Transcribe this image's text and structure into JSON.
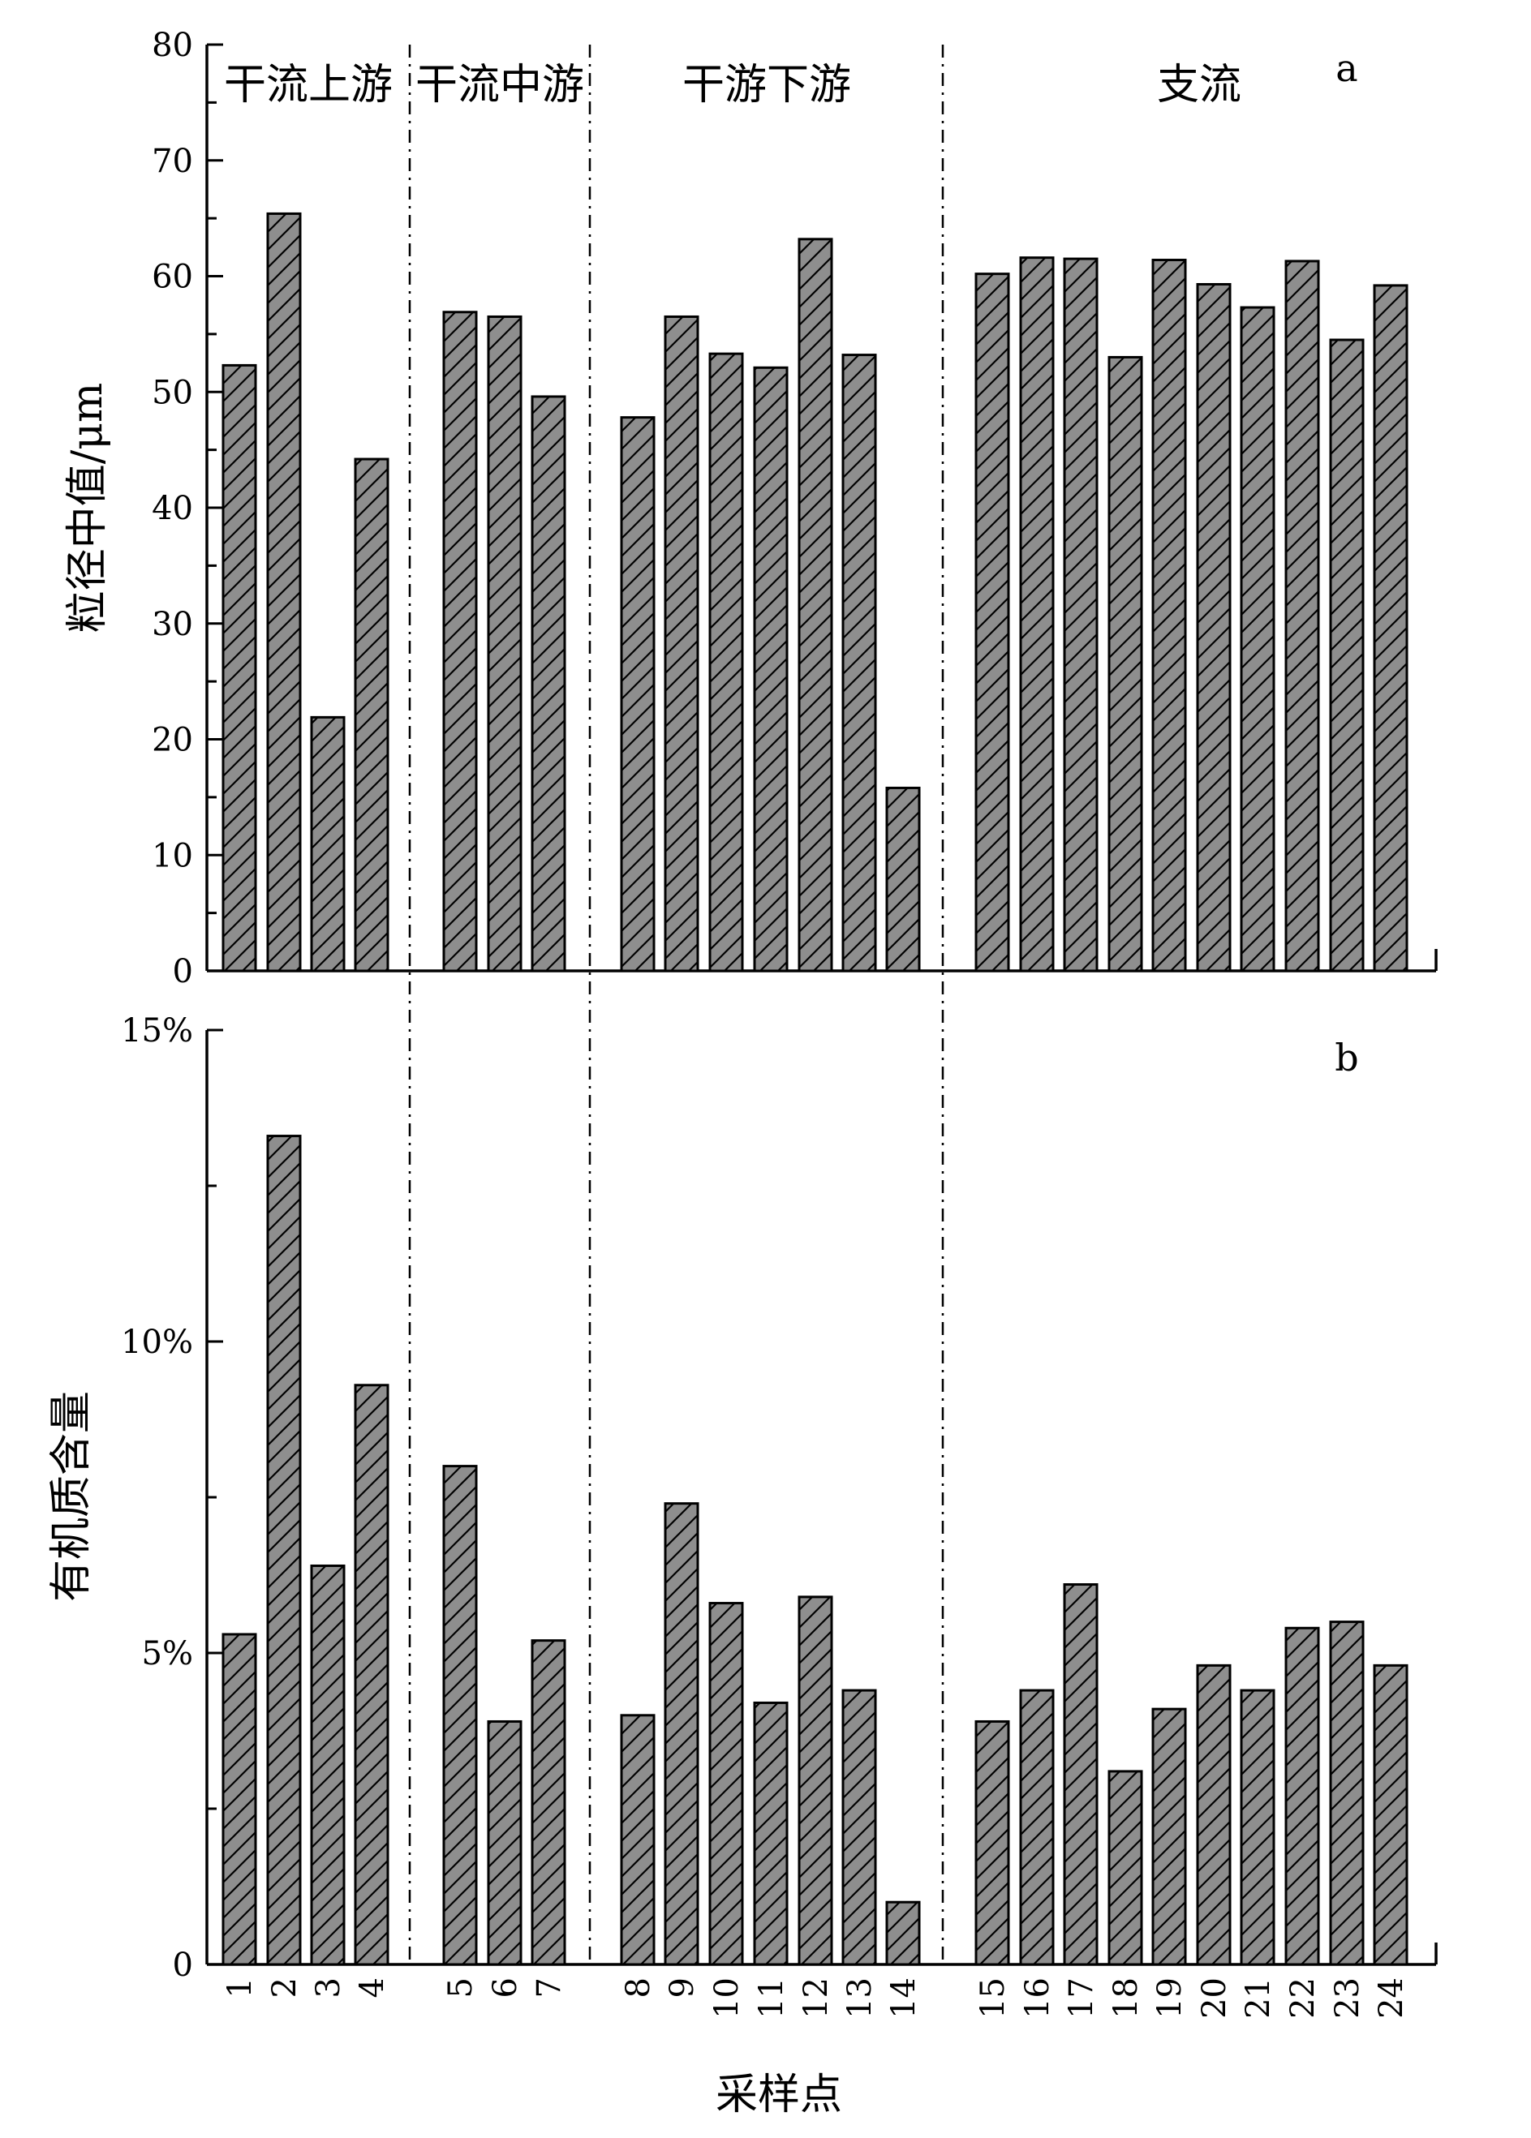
{
  "chart_data": [
    {
      "type": "bar",
      "panel": "a",
      "title": "",
      "xlabel": "",
      "ylabel": "粒径中值/μm",
      "ylim": [
        0,
        80
      ],
      "yticks": [
        "0",
        "10",
        "20",
        "30",
        "40",
        "50",
        "60",
        "70",
        "80"
      ],
      "grid": false,
      "categories": [
        "1",
        "2",
        "3",
        "4",
        "5",
        "6",
        "7",
        "8",
        "9",
        "10",
        "11",
        "12",
        "13",
        "14",
        "15",
        "16",
        "17",
        "18",
        "19",
        "20",
        "21",
        "22",
        "23",
        "24"
      ],
      "values": [
        52.3,
        65.4,
        21.9,
        44.2,
        56.9,
        56.5,
        49.6,
        47.8,
        56.5,
        53.3,
        52.1,
        63.2,
        53.2,
        15.8,
        60.2,
        61.6,
        61.5,
        53.0,
        61.4,
        59.3,
        57.3,
        61.3,
        54.5,
        59.2
      ],
      "regions": [
        "干流上游",
        "干流中游",
        "干游下游",
        "支流"
      ]
    },
    {
      "type": "bar",
      "panel": "b",
      "title": "",
      "xlabel": "采样点",
      "ylabel": "有机质含量",
      "ylim": [
        0,
        15
      ],
      "yticks": [
        "0",
        "5%",
        "10%",
        "15%"
      ],
      "grid": false,
      "categories": [
        "1",
        "2",
        "3",
        "4",
        "5",
        "6",
        "7",
        "8",
        "9",
        "10",
        "11",
        "12",
        "13",
        "14",
        "15",
        "16",
        "17",
        "18",
        "19",
        "20",
        "21",
        "22",
        "23",
        "24"
      ],
      "values": [
        5.3,
        13.3,
        6.4,
        9.3,
        8.0,
        3.9,
        5.2,
        4.0,
        7.4,
        5.8,
        4.2,
        5.9,
        4.4,
        1.0,
        3.9,
        4.4,
        6.1,
        3.1,
        4.1,
        4.8,
        4.4,
        5.4,
        5.5,
        4.8
      ]
    }
  ]
}
